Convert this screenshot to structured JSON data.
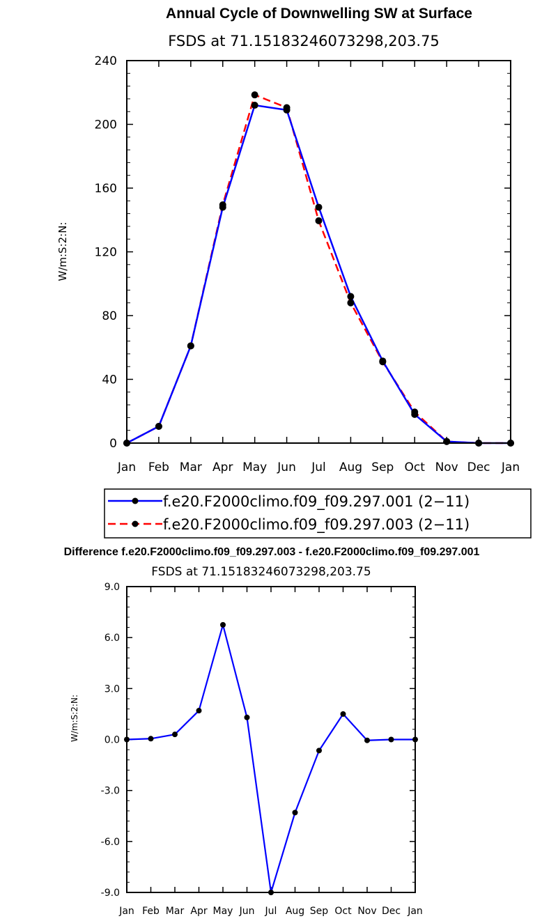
{
  "chart_data": [
    {
      "type": "line",
      "title": "Annual Cycle of Downwelling SW at Surface",
      "subtitle": "FSDS at 71.15183246073298,203.75",
      "ylabel": "W/m:S:2:N:",
      "xlabel": "",
      "categories": [
        "Jan",
        "Feb",
        "Mar",
        "Apr",
        "May",
        "Jun",
        "Jul",
        "Aug",
        "Sep",
        "Oct",
        "Nov",
        "Dec",
        "Jan"
      ],
      "yticks": [
        "0",
        "40",
        "80",
        "120",
        "160",
        "200",
        "240"
      ],
      "ylim": [
        0,
        240
      ],
      "series": [
        {
          "name": "f.e20.F2000climo.f09_f09.297.001 (2−11)",
          "color": "#0000ff",
          "dash": "solid",
          "values": [
            0.0,
            10.5,
            61,
            148,
            212,
            209,
            148,
            92,
            51.5,
            18,
            1,
            0,
            0
          ]
        },
        {
          "name": "f.e20.F2000climo.f09_f09.297.003 (2−11)",
          "color": "#ff0000",
          "dash": "dashed",
          "values": [
            0.0,
            10.5,
            61,
            149.5,
            218.5,
            210.5,
            139.5,
            88,
            51,
            19.5,
            1,
            0,
            0
          ]
        }
      ],
      "legend": "below"
    },
    {
      "type": "line",
      "title": "Difference f.e20.F2000climo.f09_f09.297.003 - f.e20.F2000climo.f09_f09.297.001",
      "subtitle": "FSDS at 71.15183246073298,203.75",
      "ylabel": "W/m:S:2:N:",
      "xlabel": "",
      "categories": [
        "Jan",
        "Feb",
        "Mar",
        "Apr",
        "May",
        "Jun",
        "Jul",
        "Aug",
        "Sep",
        "Oct",
        "Nov",
        "Dec",
        "Jan"
      ],
      "yticks": [
        "-9.0",
        "-6.0",
        "-3.0",
        "0.0",
        "3.0",
        "6.0",
        "9.0"
      ],
      "ylim": [
        -9,
        9
      ],
      "series": [
        {
          "name": "difference",
          "color": "#0000ff",
          "dash": "solid",
          "values": [
            0.0,
            0.05,
            0.3,
            1.7,
            6.75,
            1.3,
            -9.0,
            -4.3,
            -0.65,
            1.5,
            -0.05,
            0.0,
            0.0
          ]
        }
      ]
    }
  ]
}
